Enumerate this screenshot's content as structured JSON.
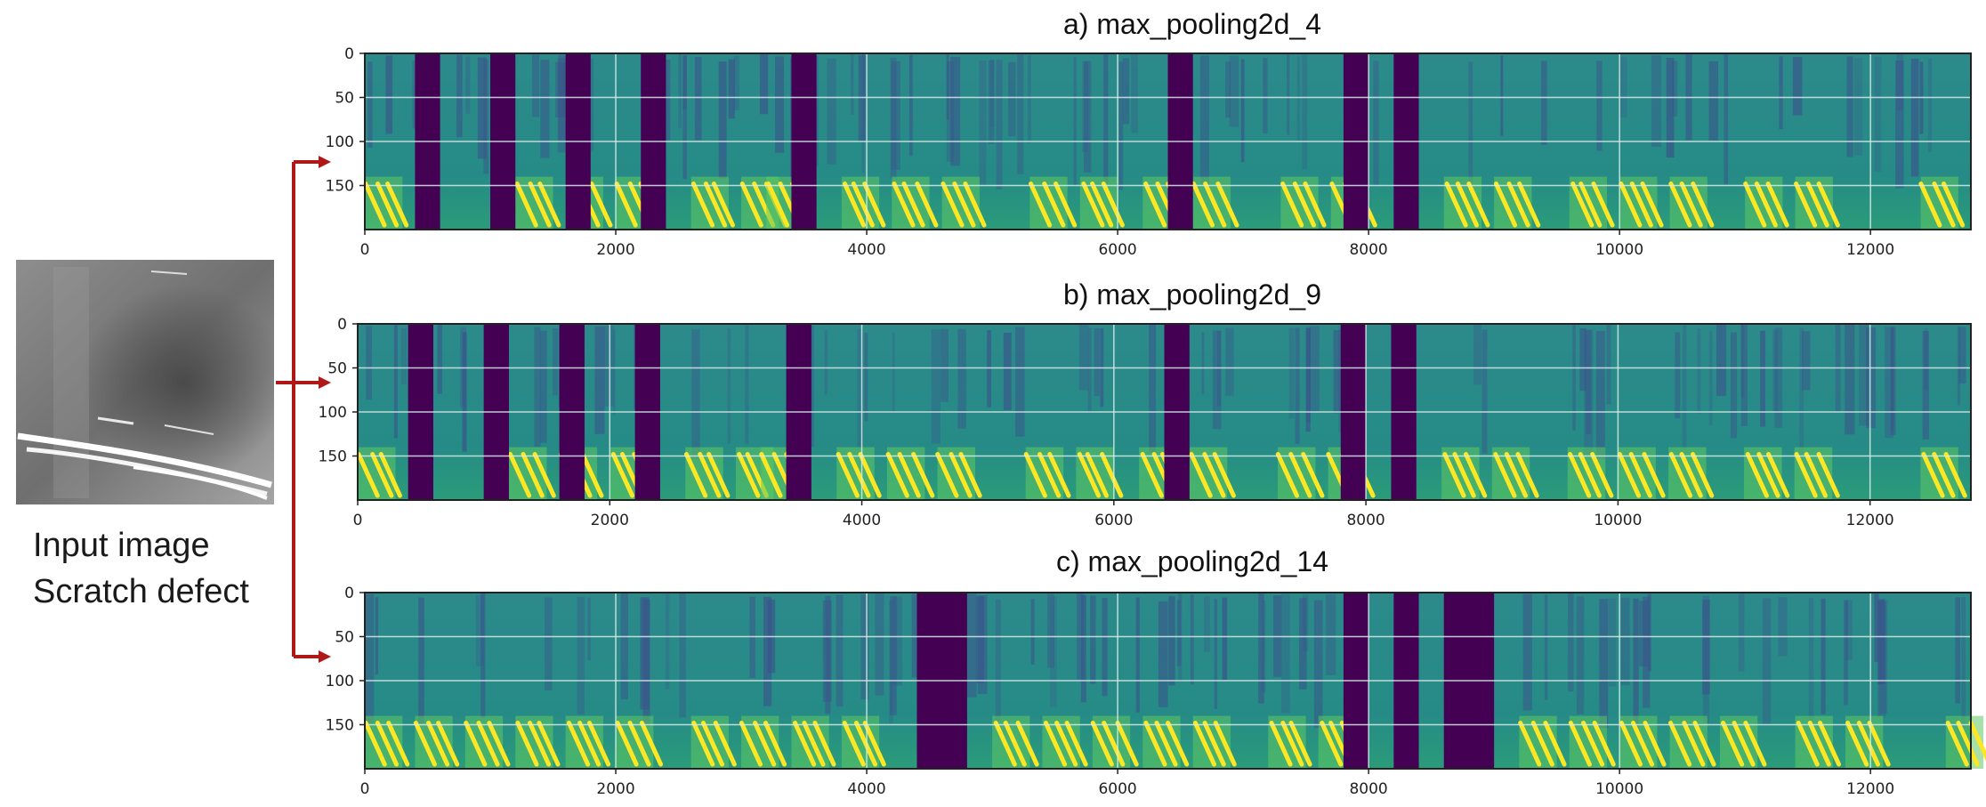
{
  "input": {
    "caption_line1": "Input image",
    "caption_line2": "Scratch defect"
  },
  "colors": {
    "background": "#2a8c8c",
    "dark_column": "#440154",
    "blue_streak": "#3b528b",
    "yellow": "#fde725",
    "green": "#5ec962",
    "grid": "#d8ece8",
    "arrow": "#b01818"
  },
  "chart_data": [
    {
      "type": "heatmap",
      "title": "a) max_pooling2d_4",
      "xlim": [
        0,
        12800
      ],
      "ylim": [
        200,
        0
      ],
      "x_ticks": [
        0,
        2000,
        4000,
        6000,
        8000,
        10000,
        12000
      ],
      "y_ticks": [
        0,
        50,
        100,
        150
      ],
      "grid": true,
      "dark_columns": [
        [
          400,
          600
        ],
        [
          1000,
          1200
        ],
        [
          1600,
          1800
        ],
        [
          2200,
          2400
        ],
        [
          3400,
          3600
        ],
        [
          6400,
          6600
        ],
        [
          7800,
          8000
        ],
        [
          8200,
          8400
        ]
      ],
      "yellow_clusters": [
        0,
        1200,
        1600,
        2000,
        2600,
        3000,
        3200,
        3800,
        4200,
        4600,
        5300,
        5700,
        6200,
        6600,
        7300,
        7700,
        8600,
        9000,
        9600,
        10000,
        10400,
        11000,
        11400,
        12400
      ]
    },
    {
      "type": "heatmap",
      "title": "b) max_pooling2d_9",
      "xlim": [
        0,
        12800
      ],
      "ylim": [
        200,
        0
      ],
      "x_ticks": [
        0,
        2000,
        4000,
        6000,
        8000,
        10000,
        12000
      ],
      "y_ticks": [
        0,
        50,
        100,
        150
      ],
      "grid": true,
      "dark_columns": [
        [
          400,
          600
        ],
        [
          1000,
          1200
        ],
        [
          1600,
          1800
        ],
        [
          2200,
          2400
        ],
        [
          3400,
          3600
        ],
        [
          6400,
          6600
        ],
        [
          7800,
          8000
        ],
        [
          8200,
          8400
        ]
      ],
      "yellow_clusters": [
        0,
        1200,
        1600,
        2000,
        2600,
        3000,
        3200,
        3800,
        4200,
        4600,
        5300,
        5700,
        6200,
        6600,
        7300,
        7700,
        8600,
        9000,
        9600,
        10000,
        10400,
        11000,
        11400,
        12400
      ]
    },
    {
      "type": "heatmap",
      "title": "c) max_pooling2d_14",
      "xlim": [
        0,
        12800
      ],
      "ylim": [
        200,
        0
      ],
      "x_ticks": [
        0,
        2000,
        4000,
        6000,
        8000,
        10000,
        12000
      ],
      "y_ticks": [
        0,
        50,
        100,
        150
      ],
      "grid": true,
      "dark_columns": [
        [
          4400,
          4800
        ],
        [
          7800,
          8000
        ],
        [
          8200,
          8400
        ],
        [
          8600,
          9000
        ]
      ],
      "yellow_clusters": [
        0,
        400,
        800,
        1200,
        1600,
        2000,
        2600,
        3000,
        3400,
        3800,
        5000,
        5400,
        5800,
        6200,
        6600,
        7200,
        7600,
        9200,
        9600,
        10000,
        10400,
        10800,
        11400,
        11800,
        12600
      ]
    }
  ]
}
